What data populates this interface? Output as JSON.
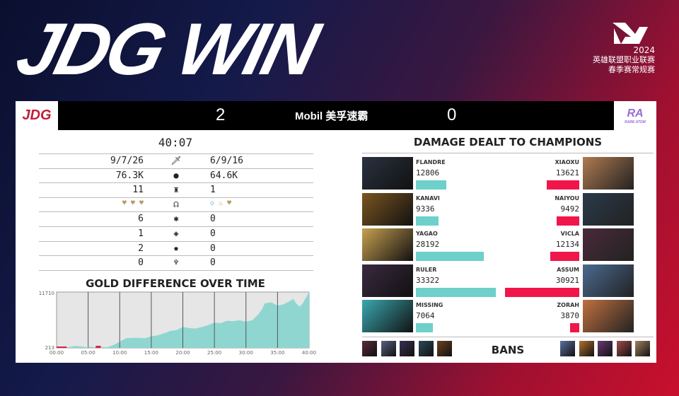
{
  "headline": "JDG WIN",
  "league": {
    "year": "2024",
    "line1": "英雄联盟职业联赛",
    "line2": "春季赛常规赛"
  },
  "scoreboard": {
    "left_team": "JDG",
    "left_score": "2",
    "sponsor": "Mobil 美孚速霸",
    "right_score": "0",
    "right_team": "RARE ATOM"
  },
  "game_time": "40:07",
  "stats": [
    {
      "icon": "sword-icon",
      "left": "9/7/26",
      "right": "6/9/16"
    },
    {
      "icon": "gold-icon",
      "left": "76.3K",
      "right": "64.6K"
    },
    {
      "icon": "tower-icon",
      "left": "11",
      "right": "1"
    },
    {
      "icon": "dragon-icon",
      "left_dragons": [
        "mountain",
        "mountain",
        "mountain"
      ],
      "right_dragons": [
        "hextech",
        "infernal",
        "mountain"
      ]
    },
    {
      "icon": "void-grub-icon",
      "left": "6",
      "right": "0"
    },
    {
      "icon": "herald-icon",
      "left": "1",
      "right": "0"
    },
    {
      "icon": "baron-icon",
      "left": "2",
      "right": "0"
    },
    {
      "icon": "elder-icon",
      "left": "0",
      "right": "0"
    }
  ],
  "colors": {
    "left": "#6ecfcb",
    "right": "#f0164a",
    "mountain": "#b89a6a",
    "hextech": "#5cc5c0",
    "infernal": "#d88a5a"
  },
  "chart_data": {
    "type": "area",
    "title": "GOLD DIFFERENCE OVER TIME",
    "ylim": [
      213,
      11710
    ],
    "yticks": [
      "11710",
      "213"
    ],
    "xticks": [
      "00:00",
      "05:00",
      "10:00",
      "15:00",
      "20:00",
      "25:00",
      "30:00",
      "35:00",
      "40:00"
    ],
    "x": [
      0,
      1,
      2,
      3,
      4,
      5,
      5.5,
      6,
      6.5,
      7,
      8,
      9,
      10,
      11,
      12,
      13,
      14,
      15,
      16,
      17,
      18,
      19,
      20,
      21,
      22,
      23,
      24,
      25,
      26,
      27,
      28,
      29,
      30,
      31,
      32,
      32.5,
      33,
      34,
      35,
      36,
      37,
      37.5,
      38,
      38.5,
      39,
      40
    ],
    "y": [
      213,
      213,
      400,
      600,
      500,
      300,
      500,
      213,
      300,
      400,
      350,
      800,
      1500,
      2200,
      2300,
      2300,
      2200,
      2600,
      2800,
      3200,
      3700,
      3900,
      4500,
      4300,
      4200,
      4500,
      4900,
      5400,
      5300,
      5800,
      5700,
      5900,
      5600,
      5900,
      7200,
      8100,
      9400,
      9600,
      8900,
      9200,
      9900,
      10300,
      9300,
      8700,
      9400,
      11710
    ],
    "grid": true
  },
  "damage": {
    "title": "DAMAGE DEALT TO CHAMPIONS",
    "max": 33322,
    "left": [
      {
        "name": "FLANDRE",
        "value": 12806
      },
      {
        "name": "KANAVI",
        "value": 9336
      },
      {
        "name": "YAGAO",
        "value": 28192
      },
      {
        "name": "RULER",
        "value": 33322
      },
      {
        "name": "MISSING",
        "value": 7064
      }
    ],
    "right": [
      {
        "name": "XIAOXU",
        "value": 13621
      },
      {
        "name": "NAIYOU",
        "value": 9492
      },
      {
        "name": "VICLA",
        "value": 12134
      },
      {
        "name": "ASSUM",
        "value": 30921
      },
      {
        "name": "ZORAH",
        "value": 3870
      }
    ]
  },
  "bans_label": "BANS"
}
